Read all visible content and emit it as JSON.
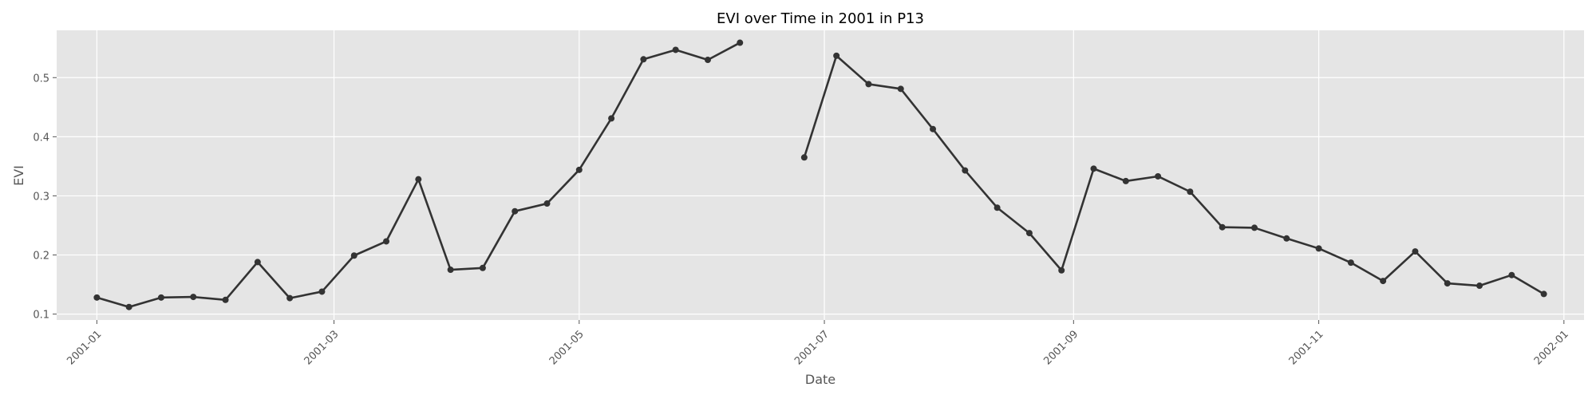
{
  "chart_data": {
    "type": "line",
    "title": "EVI over Time in 2001 in P13",
    "xlabel": "Date",
    "ylabel": "EVI",
    "xlim": [
      "2000-12-22",
      "2002-01-06"
    ],
    "ylim": [
      0.09,
      0.58
    ],
    "grid": true,
    "x_ticks": [
      "2001-01",
      "2001-03",
      "2001-05",
      "2001-07",
      "2001-09",
      "2001-11",
      "2002-01"
    ],
    "y_ticks": [
      "0.1",
      "0.2",
      "0.3",
      "0.4",
      "0.5"
    ],
    "colors": {
      "plot_bg": "#e5e5e5",
      "line": "#333333",
      "grid": "#ffffff"
    },
    "series": [
      {
        "x": [
          "2001-01-01",
          "2001-01-09",
          "2001-01-17",
          "2001-01-25",
          "2001-02-02",
          "2001-02-10",
          "2001-02-18",
          "2001-02-26",
          "2001-03-06",
          "2001-03-14",
          "2001-03-22",
          "2001-03-30",
          "2001-04-07",
          "2001-04-15",
          "2001-04-23",
          "2001-05-01",
          "2001-05-09",
          "2001-05-17",
          "2001-05-25",
          "2001-06-02",
          "2001-06-10",
          "2001-06-18",
          "2001-06-26",
          "2001-07-04",
          "2001-07-12",
          "2001-07-20",
          "2001-07-28",
          "2001-08-05",
          "2001-08-13",
          "2001-08-21",
          "2001-08-29",
          "2001-09-06",
          "2001-09-14",
          "2001-09-22",
          "2001-09-30",
          "2001-10-08",
          "2001-10-16",
          "2001-10-24",
          "2001-11-01",
          "2001-11-09",
          "2001-11-17",
          "2001-11-25",
          "2001-12-03",
          "2001-12-11",
          "2001-12-19",
          "2001-12-27"
        ],
        "values": [
          0.128,
          0.112,
          0.128,
          0.129,
          0.124,
          0.188,
          0.127,
          0.138,
          0.199,
          0.223,
          0.328,
          0.175,
          0.178,
          0.274,
          0.287,
          0.344,
          0.431,
          0.531,
          0.547,
          0.53,
          0.559,
          null,
          0.365,
          0.537,
          0.489,
          0.481,
          0.413,
          0.343,
          0.28,
          0.237,
          0.174,
          0.346,
          0.325,
          0.333,
          0.307,
          0.247,
          0.246,
          0.228,
          0.211,
          0.187,
          0.156,
          0.206,
          0.152,
          0.148,
          0.166,
          0.134
        ]
      }
    ]
  }
}
